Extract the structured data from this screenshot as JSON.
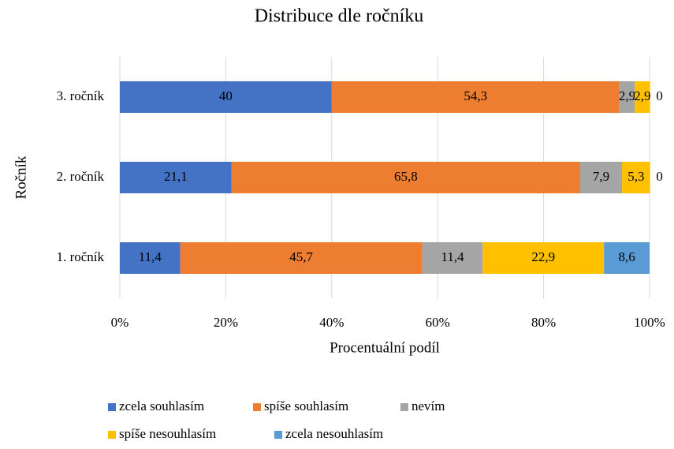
{
  "chart_data": {
    "type": "stacked-bar-horizontal",
    "title": "Distribuce dle ročníku",
    "x_label": "Procentuální podíl",
    "y_label": "Ročník",
    "categories": [
      "1. ročník",
      "2. ročník",
      "3. ročník"
    ],
    "series": [
      {
        "name": "zcela souhlasím",
        "color": "#4472c4",
        "values": [
          11.4,
          21.1,
          40
        ],
        "value_labels": [
          "11,4",
          "21,1",
          "40"
        ]
      },
      {
        "name": "spíše souhlasím",
        "color": "#ed7d31",
        "values": [
          45.7,
          65.8,
          54.3
        ],
        "value_labels": [
          "45,7",
          "65,8",
          "54,3"
        ]
      },
      {
        "name": "nevím",
        "color": "#a5a5a5",
        "values": [
          11.4,
          7.9,
          2.9
        ],
        "value_labels": [
          "11,4",
          "7,9",
          "2,9"
        ]
      },
      {
        "name": "spíše nesouhlasím",
        "color": "#ffc000",
        "values": [
          22.9,
          5.3,
          2.9
        ],
        "value_labels": [
          "22,9",
          "5,3",
          "2,9"
        ]
      },
      {
        "name": "zcela nesouhlasím",
        "color": "#5b9bd5",
        "values": [
          8.6,
          0,
          0
        ],
        "value_labels": [
          "8,6",
          "0",
          "0"
        ]
      }
    ],
    "xlim": [
      0,
      100
    ],
    "xticks": [
      {
        "value": 0,
        "label": "0%"
      },
      {
        "value": 20,
        "label": "20%"
      },
      {
        "value": 40,
        "label": "40%"
      },
      {
        "value": 60,
        "label": "60%"
      },
      {
        "value": 80,
        "label": "80%"
      },
      {
        "value": 100,
        "label": "100%"
      }
    ],
    "grid": true,
    "legend": "bottom"
  }
}
